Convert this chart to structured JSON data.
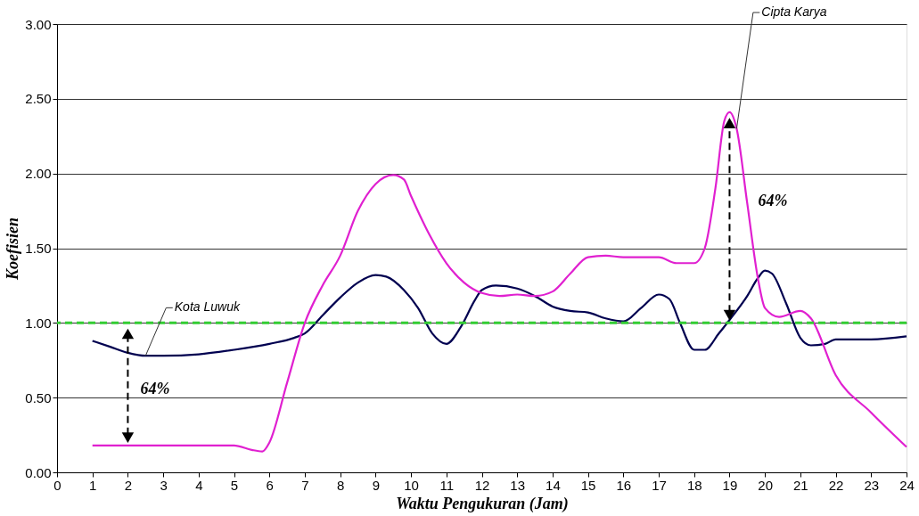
{
  "chart_data": {
    "type": "line",
    "xlabel": "Waktu Pengukuran (Jam)",
    "ylabel": "Koefisien",
    "xlim": [
      0,
      24
    ],
    "xticks": [
      0,
      1,
      2,
      3,
      4,
      5,
      6,
      7,
      8,
      9,
      10,
      11,
      12,
      13,
      14,
      15,
      16,
      17,
      18,
      19,
      20,
      21,
      22,
      23,
      24
    ],
    "ylim": [
      0,
      3
    ],
    "yticks": [
      {
        "value": 0,
        "label": "0.00"
      },
      {
        "value": 0.5,
        "label": "0.50"
      },
      {
        "value": 1,
        "label": "1.00"
      },
      {
        "value": 1.5,
        "label": "1.50"
      },
      {
        "value": 2,
        "label": "2.00"
      },
      {
        "value": 2.5,
        "label": "2.50"
      },
      {
        "value": 3,
        "label": "3.00"
      }
    ],
    "grid": "y",
    "marker": "none",
    "line_style": "solid",
    "series": [
      {
        "name": "Kota Luwuk",
        "color": "#000050",
        "x": [
          1,
          1.5,
          2,
          2.5,
          3,
          4,
          5,
          6,
          6.7,
          7,
          7.5,
          8,
          8.5,
          9,
          9.3,
          9.8,
          10.2,
          10.6,
          11,
          11.4,
          11.8,
          12,
          12.4,
          13,
          13.5,
          14,
          14.5,
          15,
          15.5,
          16,
          16.5,
          17,
          17.3,
          17.6,
          18,
          18.3,
          18.7,
          19,
          19.5,
          19.8,
          20,
          20.2,
          20.6,
          21,
          21.3,
          21.7,
          22,
          23,
          24
        ],
        "values": [
          0.88,
          0.84,
          0.8,
          0.78,
          0.78,
          0.79,
          0.82,
          0.86,
          0.9,
          0.93,
          1.05,
          1.17,
          1.27,
          1.32,
          1.31,
          1.22,
          1.1,
          0.93,
          0.86,
          0.97,
          1.15,
          1.22,
          1.25,
          1.23,
          1.18,
          1.11,
          1.08,
          1.07,
          1.03,
          1.01,
          1.1,
          1.19,
          1.16,
          1.0,
          0.82,
          0.82,
          0.93,
          1.02,
          1.18,
          1.3,
          1.35,
          1.33,
          1.13,
          0.9,
          0.85,
          0.86,
          0.89,
          0.89,
          0.91
        ]
      },
      {
        "name": "Cipta Karya",
        "color": "#e020d0",
        "x": [
          1,
          5,
          5.5,
          5.8,
          6,
          6.5,
          7,
          7.5,
          8,
          8.5,
          9,
          9.5,
          9.8,
          10,
          10.5,
          11,
          11.5,
          12,
          12.5,
          13,
          13.5,
          14,
          14.5,
          15,
          15.5,
          16,
          17,
          17.5,
          18,
          18.3,
          18.6,
          18.85,
          19,
          19.2,
          19.5,
          19.8,
          20,
          20.4,
          21,
          21.3,
          22,
          23,
          24
        ],
        "values": [
          0.18,
          0.18,
          0.15,
          0.14,
          0.2,
          0.6,
          1.0,
          1.25,
          1.45,
          1.75,
          1.93,
          1.99,
          1.96,
          1.85,
          1.6,
          1.4,
          1.27,
          1.2,
          1.18,
          1.19,
          1.18,
          1.21,
          1.33,
          1.44,
          1.45,
          1.44,
          1.44,
          1.4,
          1.4,
          1.5,
          1.9,
          2.35,
          2.41,
          2.3,
          1.8,
          1.3,
          1.1,
          1.04,
          1.08,
          1.03,
          0.65,
          0.4,
          0.17
        ]
      }
    ],
    "ref_lines": [
      {
        "axis": "y",
        "value": 1,
        "color": "#33cc33",
        "line_style": "dashed"
      }
    ],
    "annotations": [
      "64%",
      "64%"
    ]
  }
}
